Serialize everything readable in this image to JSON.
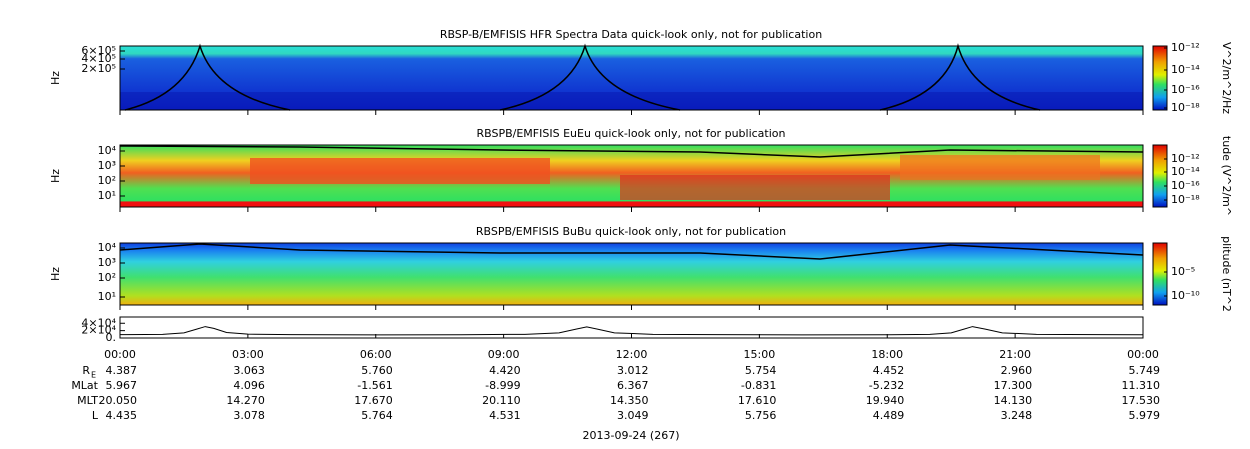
{
  "panels": [
    {
      "title": "RBSP-B/EMFISIS  HFR Spectra Data quick-look only, not for publication",
      "y_label": "Hz",
      "y_ticks": [
        "6×10⁵",
        "4×10⁵",
        "2×10⁵"
      ],
      "colorbar_label": "V^2/m^2/Hz",
      "colorbar_ticks": [
        "10⁻¹²",
        "10⁻¹⁴",
        "10⁻¹⁶",
        "10⁻¹⁸"
      ]
    },
    {
      "title": "RBSPB/EMFISIS  EuEu quick-look only, not for publication",
      "y_label": "Hz",
      "y_ticks": [
        "10⁴",
        "10³",
        "10²",
        "10¹"
      ],
      "colorbar_label": "tude (V^2/m^",
      "colorbar_ticks": [
        "10⁻¹²",
        "10⁻¹⁴",
        "10⁻¹⁶",
        "10⁻¹⁸"
      ]
    },
    {
      "title": "RBSPB/EMFISIS  BuBu quick-look only, not for publication",
      "y_label": "Hz",
      "y_ticks": [
        "10⁴",
        "10³",
        "10²",
        "10¹"
      ],
      "colorbar_label": "plitude (nT^2",
      "colorbar_ticks": [
        "10⁻⁵",
        "10⁻¹⁰"
      ]
    }
  ],
  "chart_data": {
    "type": "line",
    "x": [
      0,
      1,
      1.5,
      1.8,
      2,
      2.2,
      2.5,
      3,
      4,
      6,
      8,
      9.5,
      10.3,
      10.7,
      10.95,
      11.2,
      11.6,
      12.5,
      14,
      16,
      18,
      19,
      19.5,
      19.8,
      20,
      20.3,
      20.7,
      21.5,
      23,
      24
    ],
    "values": [
      9000,
      10000,
      14000,
      24000,
      31000,
      26000,
      15000,
      10500,
      9000,
      8500,
      8800,
      10000,
      14000,
      24000,
      30000,
      24000,
      14000,
      10000,
      9000,
      8500,
      8800,
      10000,
      14000,
      24000,
      31000,
      24000,
      14000,
      10000,
      9000,
      8800
    ],
    "color": "#000000",
    "xlim": [
      0,
      24
    ],
    "xticks": [
      {
        "value": 0,
        "label": "00:00"
      },
      {
        "value": 3,
        "label": "03:00"
      },
      {
        "value": 6,
        "label": "06:00"
      },
      {
        "value": 9,
        "label": "09:00"
      },
      {
        "value": 12,
        "label": "12:00"
      },
      {
        "value": 15,
        "label": "15:00"
      },
      {
        "value": 18,
        "label": "18:00"
      },
      {
        "value": 21,
        "label": "21:00"
      },
      {
        "value": 24,
        "label": "00:00"
      }
    ],
    "ylim": [
      0,
      57000
    ],
    "yticks": [
      {
        "value": 40000,
        "label": "4×10⁴"
      },
      {
        "value": 20000,
        "label": "2×10⁴"
      },
      {
        "value": 0,
        "label": "0."
      }
    ]
  },
  "ephemeris": {
    "rows": [
      {
        "label": "R",
        "sub": "E",
        "values": [
          "4.387",
          "3.063",
          "5.760",
          "4.420",
          "3.012",
          "5.754",
          "4.452",
          "2.960",
          "5.749"
        ]
      },
      {
        "label": "MLat",
        "values": [
          "5.967",
          "4.096",
          "-1.561",
          "-8.999",
          "6.367",
          "-0.831",
          "-5.232",
          "17.300",
          "11.310"
        ]
      },
      {
        "label": "MLT",
        "values": [
          "20.050",
          "14.270",
          "17.670",
          "20.110",
          "14.350",
          "17.610",
          "19.940",
          "14.130",
          "17.530"
        ]
      },
      {
        "label": "L",
        "values": [
          "4.435",
          "3.078",
          "5.764",
          "4.531",
          "3.049",
          "5.756",
          "4.489",
          "3.248",
          "5.979"
        ]
      }
    ]
  },
  "date": "2013-09-24 (267)"
}
